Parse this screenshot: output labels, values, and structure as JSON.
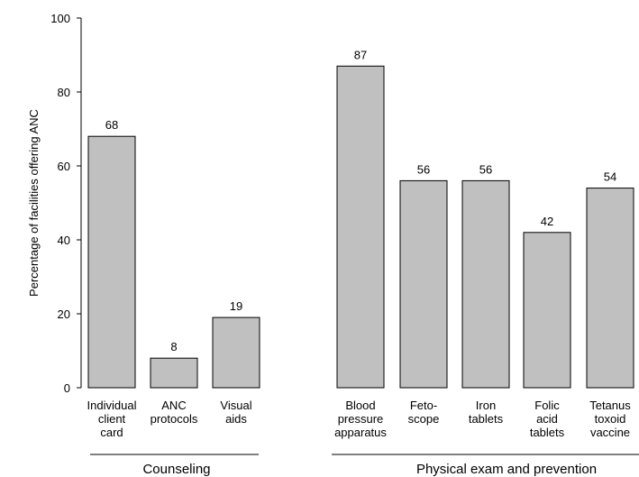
{
  "chart_data": {
    "type": "bar",
    "ylabel": "Percentage of facilities offering ANC",
    "ylim": [
      0,
      100
    ],
    "yticks": [
      0,
      20,
      40,
      60,
      80,
      100
    ],
    "grid": false,
    "legend": "none",
    "bar_color": "#c0c0c0",
    "groups": [
      {
        "label": "Counseling",
        "bar_indices": [
          0,
          1,
          2
        ]
      },
      {
        "label": "Physical exam and prevention",
        "bar_indices": [
          3,
          4,
          5,
          6,
          7
        ]
      }
    ],
    "categories": [
      "Individual client card",
      "ANC protocols",
      "Visual aids",
      "Blood pressure apparatus",
      "Feto-scope",
      "Iron tablets",
      "Folic acid tablets",
      "Tetanus toxoid vaccine"
    ],
    "category_label_lines": [
      [
        "Individual",
        "client",
        "card"
      ],
      [
        "ANC",
        "protocols"
      ],
      [
        "Visual",
        "aids"
      ],
      [
        "Blood",
        "pressure",
        "apparatus"
      ],
      [
        "Feto-",
        "scope"
      ],
      [
        "Iron",
        "tablets"
      ],
      [
        "Folic",
        "acid",
        "tablets"
      ],
      [
        "Tetanus",
        "toxoid",
        "vaccine"
      ]
    ],
    "values": [
      68,
      8,
      19,
      87,
      56,
      56,
      42,
      54
    ]
  }
}
